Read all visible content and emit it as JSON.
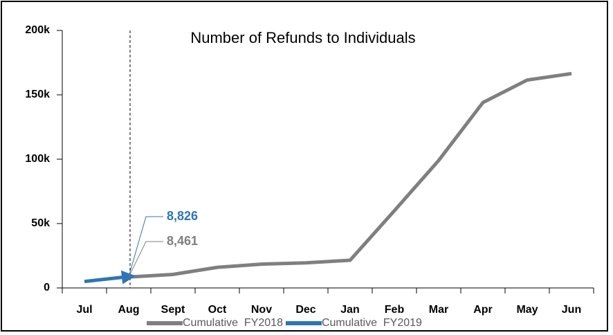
{
  "chart_data": {
    "type": "line",
    "title": "Number of Refunds to Individuals",
    "categories": [
      "Jul",
      "Aug",
      "Sept",
      "Oct",
      "Nov",
      "Dec",
      "Jan",
      "Feb",
      "Mar",
      "Apr",
      "May",
      "Jun"
    ],
    "series": [
      {
        "name": "Cumulative  FY2018",
        "color": "#7f7f7f",
        "values": [
          null,
          8461,
          10500,
          16000,
          18500,
          19500,
          21500,
          60000,
          99000,
          144000,
          161500,
          166500
        ],
        "value_labels": [
          null,
          "8,461",
          null,
          null,
          null,
          null,
          null,
          null,
          null,
          null,
          null,
          null
        ]
      },
      {
        "name": "Cumulative  FY2019",
        "color": "#2e75b6",
        "values": [
          5000,
          8826,
          null,
          null,
          null,
          null,
          null,
          null,
          null,
          null,
          null,
          null
        ],
        "value_labels": [
          null,
          "8,826",
          null,
          null,
          null,
          null,
          null,
          null,
          null,
          null,
          null,
          null
        ]
      }
    ],
    "ylim": [
      0,
      200000
    ],
    "yticks": [
      0,
      {
        "value": 50000,
        "label": "50k"
      },
      {
        "value": 100000,
        "label": "100k"
      },
      {
        "value": 150000,
        "label": "150k"
      },
      {
        "value": 200000,
        "label": "200k"
      }
    ],
    "grid": false
  }
}
